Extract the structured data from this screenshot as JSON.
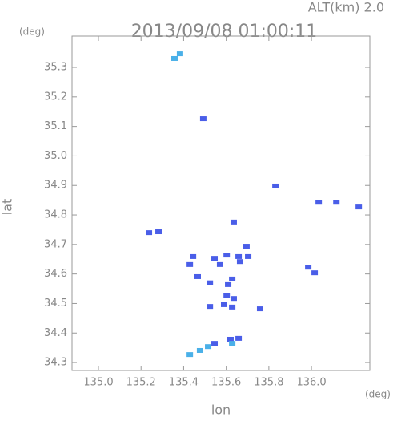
{
  "chart_data": {
    "type": "scatter",
    "title": "2013/09/08 01:00:11",
    "subtitle": "ALT(km) 2.0",
    "x_label": "lon",
    "y_label": "lat",
    "x_unit": "(deg)",
    "y_unit": "(deg)",
    "xlim": [
      134.876,
      136.274
    ],
    "ylim": [
      34.273,
      35.406
    ],
    "xticks": [
      {
        "value": 135.0,
        "label": "135.0"
      },
      135.2,
      135.4,
      135.6,
      135.8,
      {
        "value": 136.0,
        "label": "136.0"
      }
    ],
    "yticks": [
      34.3,
      34.4,
      34.5,
      34.6,
      34.7,
      34.8,
      34.9,
      {
        "value": 35.0,
        "label": "35.0"
      },
      35.1,
      35.2,
      35.3
    ],
    "series": [
      {
        "color": "#4a5ee8",
        "x": [
          135.492,
          135.831,
          136.034,
          136.117,
          136.222,
          135.635,
          135.237,
          135.282,
          135.695,
          135.444,
          135.545,
          135.602,
          135.658,
          135.703,
          135.571,
          135.665,
          135.429,
          135.985,
          136.015,
          135.523,
          135.628,
          135.609,
          135.466,
          135.602,
          135.635,
          135.59,
          135.628,
          135.523,
          135.759,
          135.62,
          135.658,
          135.545
        ],
        "values": [
          35.126,
          34.898,
          34.843,
          34.843,
          34.827,
          34.776,
          34.74,
          34.743,
          34.694,
          34.659,
          34.653,
          34.664,
          34.659,
          34.659,
          34.632,
          34.642,
          34.632,
          34.623,
          34.604,
          34.57,
          34.583,
          34.564,
          34.591,
          34.528,
          34.517,
          34.496,
          34.488,
          34.49,
          34.482,
          34.379,
          34.382,
          34.365
        ]
      },
      {
        "color": "#4ab0e8",
        "x": [
          135.357,
          135.383,
          135.477,
          135.515,
          135.429,
          135.628
        ],
        "values": [
          35.33,
          35.346,
          34.341,
          34.354,
          34.327,
          34.365
        ]
      }
    ]
  }
}
